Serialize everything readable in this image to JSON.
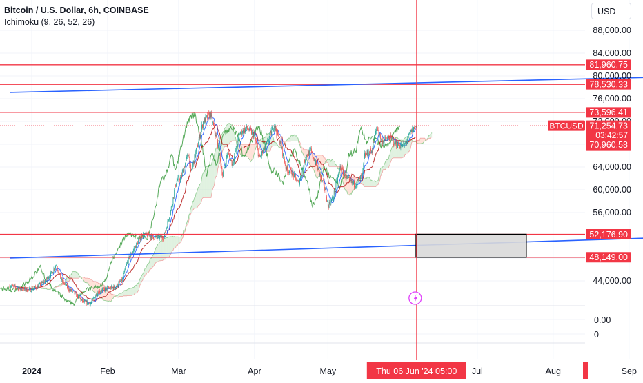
{
  "header": {
    "title": "Bitcoin / U.S. Dollar, 6h, COINBASE",
    "indicator": "Ichimoku (9, 26, 52, 26)",
    "currency": "USD"
  },
  "colors": {
    "line_red": "#f23645",
    "trend_blue": "#2962ff",
    "tenkan": "#2962ff",
    "kijun": "#b71c1c",
    "chikou": "#43a047",
    "cloud_green": "#a5d6a7",
    "cloud_red": "#ffab91",
    "candle_up": "#26a69a",
    "candle_down": "#ef5350",
    "label_red": "#f23645",
    "box_fill": "#d9d9d9",
    "box_stroke": "#000000",
    "grid": "#f0f3fa",
    "crosshair": "#f23645"
  },
  "chart_data": {
    "type": "candlestick",
    "symbol": "BTCUSD",
    "y_axis": {
      "main_ticks": [
        "88,000.00",
        "84,000.00",
        "80,000.00",
        "76,000.00",
        "72,000.00",
        "68,000.00",
        "64,000.00",
        "60,000.00",
        "56,000.00",
        "48,000.00",
        "44,000.00"
      ],
      "main_tick_values": [
        88000,
        84000,
        80000,
        76000,
        72000,
        68000,
        64000,
        60000,
        56000,
        48000,
        44000
      ],
      "sub_ticks": [
        "0.00",
        "0"
      ]
    },
    "x_axis": {
      "labels": [
        "2024",
        "Feb",
        "Mar",
        "Apr",
        "May",
        "Jul",
        "Aug",
        "Sep"
      ],
      "dates": [
        "2024-01-01",
        "2024-02-01",
        "2024-03-01",
        "2024-04-01",
        "2024-05-01",
        "2024-07-01",
        "2024-08-01",
        "2024-09-01"
      ],
      "bold": [
        "2024"
      ]
    },
    "horizontal_levels": [
      {
        "label": "81,960.75",
        "value": 81960.75
      },
      {
        "label": "78,530.33",
        "value": 78530.33
      },
      {
        "label": "73,596.41",
        "value": 73596.41
      },
      {
        "label": "52,176.90",
        "value": 52176.9
      },
      {
        "label": "48,149.00",
        "value": 48149
      }
    ],
    "trendlines": [
      {
        "name": "upper",
        "start": {
          "date": "2023-12-23",
          "value": 77100
        },
        "end": {
          "date": "2024-09-15",
          "value": 79800
        }
      },
      {
        "name": "lower",
        "start": {
          "date": "2023-12-23",
          "value": 48000
        },
        "end": {
          "date": "2024-09-15",
          "value": 51600
        }
      }
    ],
    "rectangle": {
      "date_start": "2024-06-06",
      "date_end": "2024-07-21",
      "value_top": 52176.9,
      "value_bottom": 48149
    },
    "current_price": {
      "symbol": "BTCUSD",
      "price_label": "71,254.73",
      "value": 71254.73,
      "countdown": "03:42:57",
      "low_label": "70,960.58",
      "low_value": 70960.58
    },
    "crosshair": {
      "label": "Thu 06 Jun '24   05:00",
      "date": "2024-06-06"
    },
    "price_path": [
      {
        "date": "2023-12-23",
        "close": 43200
      },
      {
        "date": "2023-12-27",
        "close": 42600
      },
      {
        "date": "2023-12-31",
        "close": 42400
      },
      {
        "date": "2024-01-03",
        "close": 42900
      },
      {
        "date": "2024-01-06",
        "close": 43800
      },
      {
        "date": "2024-01-09",
        "close": 45300
      },
      {
        "date": "2024-01-11",
        "close": 46800
      },
      {
        "date": "2024-01-13",
        "close": 44200
      },
      {
        "date": "2024-01-16",
        "close": 42600
      },
      {
        "date": "2024-01-19",
        "close": 41600
      },
      {
        "date": "2024-01-22",
        "close": 40300
      },
      {
        "date": "2024-01-25",
        "close": 40000
      },
      {
        "date": "2024-01-28",
        "close": 42100
      },
      {
        "date": "2024-02-01",
        "close": 42700
      },
      {
        "date": "2024-02-04",
        "close": 42900
      },
      {
        "date": "2024-02-07",
        "close": 44200
      },
      {
        "date": "2024-02-09",
        "close": 47300
      },
      {
        "date": "2024-02-12",
        "close": 49800
      },
      {
        "date": "2024-02-15",
        "close": 52100
      },
      {
        "date": "2024-02-18",
        "close": 52000
      },
      {
        "date": "2024-02-21",
        "close": 51500
      },
      {
        "date": "2024-02-24",
        "close": 51700
      },
      {
        "date": "2024-02-27",
        "close": 56800
      },
      {
        "date": "2024-02-29",
        "close": 61500
      },
      {
        "date": "2024-03-02",
        "close": 62200
      },
      {
        "date": "2024-03-05",
        "close": 66500
      },
      {
        "date": "2024-03-06",
        "close": 63000
      },
      {
        "date": "2024-03-09",
        "close": 68300
      },
      {
        "date": "2024-03-11",
        "close": 71900
      },
      {
        "date": "2024-03-14",
        "close": 73300
      },
      {
        "date": "2024-03-17",
        "close": 68000
      },
      {
        "date": "2024-03-19",
        "close": 62500
      },
      {
        "date": "2024-03-21",
        "close": 66500
      },
      {
        "date": "2024-03-23",
        "close": 64500
      },
      {
        "date": "2024-03-26",
        "close": 70000
      },
      {
        "date": "2024-03-29",
        "close": 70800
      },
      {
        "date": "2024-04-01",
        "close": 69500
      },
      {
        "date": "2024-04-03",
        "close": 65500
      },
      {
        "date": "2024-04-06",
        "close": 68000
      },
      {
        "date": "2024-04-09",
        "close": 71500
      },
      {
        "date": "2024-04-12",
        "close": 67500
      },
      {
        "date": "2024-04-14",
        "close": 63500
      },
      {
        "date": "2024-04-16",
        "close": 63300
      },
      {
        "date": "2024-04-19",
        "close": 61000
      },
      {
        "date": "2024-04-22",
        "close": 66000
      },
      {
        "date": "2024-04-24",
        "close": 66800
      },
      {
        "date": "2024-04-27",
        "close": 63500
      },
      {
        "date": "2024-04-30",
        "close": 59800
      },
      {
        "date": "2024-05-01",
        "close": 57200
      },
      {
        "date": "2024-05-03",
        "close": 58500
      },
      {
        "date": "2024-05-06",
        "close": 64000
      },
      {
        "date": "2024-05-09",
        "close": 61800
      },
      {
        "date": "2024-05-12",
        "close": 60800
      },
      {
        "date": "2024-05-15",
        "close": 62500
      },
      {
        "date": "2024-05-16",
        "close": 66000
      },
      {
        "date": "2024-05-19",
        "close": 67000
      },
      {
        "date": "2024-05-21",
        "close": 71000
      },
      {
        "date": "2024-05-23",
        "close": 68500
      },
      {
        "date": "2024-05-26",
        "close": 69200
      },
      {
        "date": "2024-05-29",
        "close": 68000
      },
      {
        "date": "2024-06-01",
        "close": 67600
      },
      {
        "date": "2024-06-04",
        "close": 70200
      },
      {
        "date": "2024-06-06",
        "close": 71254.73
      }
    ]
  }
}
